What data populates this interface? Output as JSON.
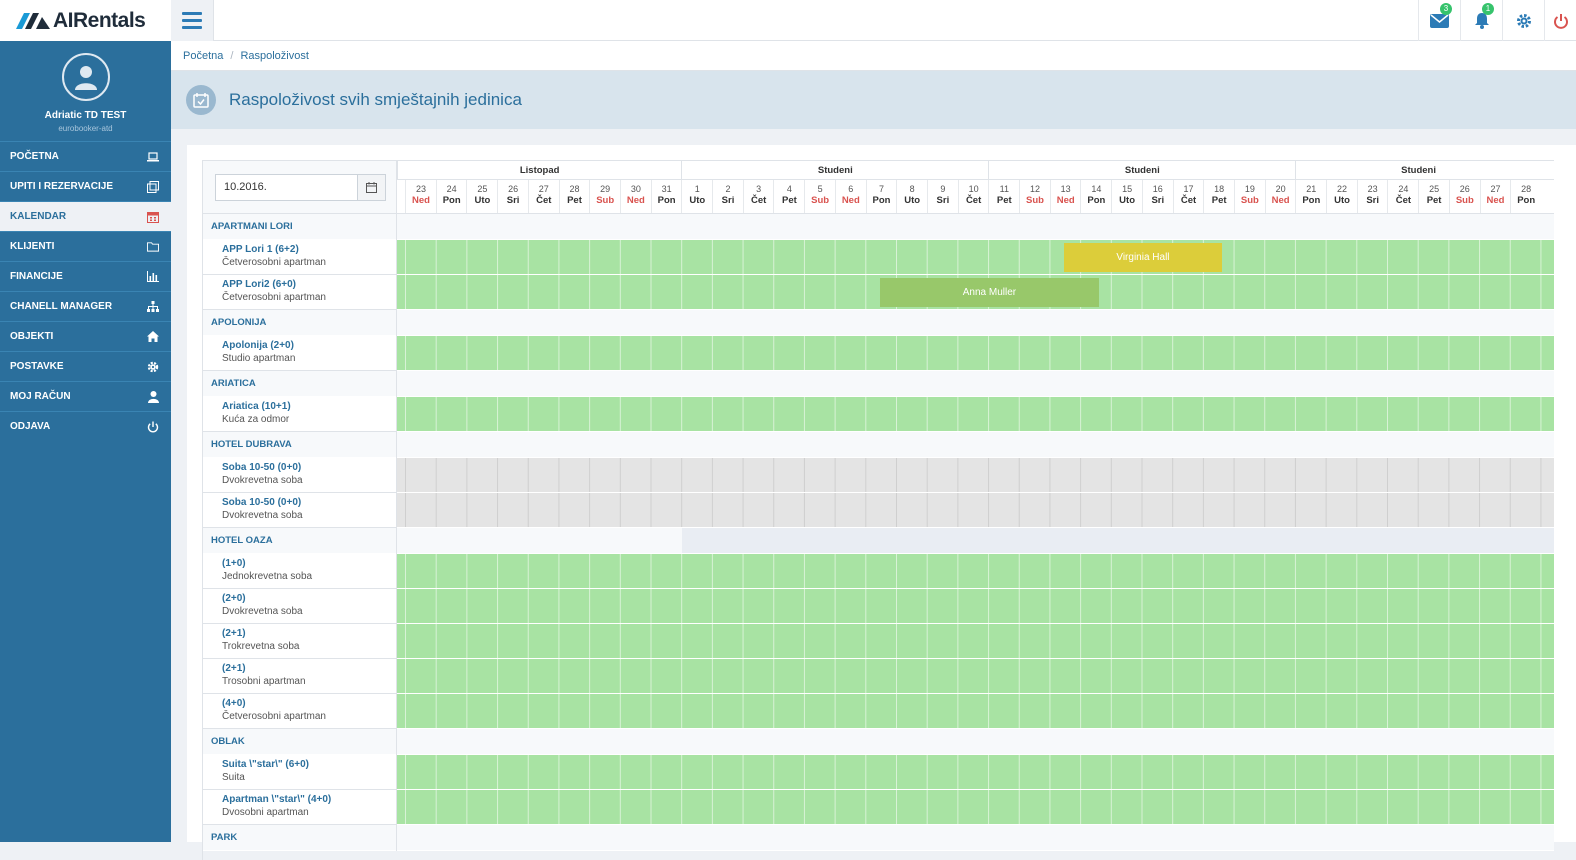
{
  "app": {
    "brand": "AIRentals"
  },
  "topbar": {
    "mail_count": "3",
    "notif_count": "1"
  },
  "profile": {
    "name": "Adriatic TD TEST",
    "sub": "eurobooker-atd"
  },
  "nav": [
    {
      "label": "POČETNA",
      "icon": "laptop-icon"
    },
    {
      "label": "UPITI I REZERVACIJE",
      "icon": "copy-icon"
    },
    {
      "label": "KALENDAR",
      "icon": "calendar-icon",
      "active": true
    },
    {
      "label": "KLIJENTI",
      "icon": "folder-icon"
    },
    {
      "label": "FINANCIJE",
      "icon": "chart-icon"
    },
    {
      "label": "CHANELL MANAGER",
      "icon": "sitemap-icon"
    },
    {
      "label": "OBJEKTI",
      "icon": "home-icon"
    },
    {
      "label": "POSTAVKE",
      "icon": "gear-icon"
    },
    {
      "label": "MOJ RAČUN",
      "icon": "user-icon"
    },
    {
      "label": "ODJAVA",
      "icon": "power-icon"
    }
  ],
  "breadcrumb": {
    "home": "Početna",
    "current": "Raspoloživost"
  },
  "page": {
    "title": "Raspoloživost svih smještajnih jedinica"
  },
  "calendar": {
    "date_value": "10.2016.",
    "months": [
      "Listopad",
      "Studeni",
      "Studeni",
      "Studeni"
    ],
    "days": [
      {
        "d": "23",
        "w": "Ned",
        "we": true
      },
      {
        "d": "24",
        "w": "Pon"
      },
      {
        "d": "25",
        "w": "Uto"
      },
      {
        "d": "26",
        "w": "Sri"
      },
      {
        "d": "27",
        "w": "Čet"
      },
      {
        "d": "28",
        "w": "Pet"
      },
      {
        "d": "29",
        "w": "Sub",
        "we": true
      },
      {
        "d": "30",
        "w": "Ned",
        "we": true
      },
      {
        "d": "31",
        "w": "Pon"
      },
      {
        "d": "1",
        "w": "Uto"
      },
      {
        "d": "2",
        "w": "Sri"
      },
      {
        "d": "3",
        "w": "Čet"
      },
      {
        "d": "4",
        "w": "Pet"
      },
      {
        "d": "5",
        "w": "Sub",
        "we": true
      },
      {
        "d": "6",
        "w": "Ned",
        "we": true
      },
      {
        "d": "7",
        "w": "Pon"
      },
      {
        "d": "8",
        "w": "Uto"
      },
      {
        "d": "9",
        "w": "Sri"
      },
      {
        "d": "10",
        "w": "Čet"
      },
      {
        "d": "11",
        "w": "Pet"
      },
      {
        "d": "12",
        "w": "Sub",
        "we": true
      },
      {
        "d": "13",
        "w": "Ned",
        "we": true
      },
      {
        "d": "14",
        "w": "Pon"
      },
      {
        "d": "15",
        "w": "Uto"
      },
      {
        "d": "16",
        "w": "Sri"
      },
      {
        "d": "17",
        "w": "Čet"
      },
      {
        "d": "18",
        "w": "Pet"
      },
      {
        "d": "19",
        "w": "Sub",
        "we": true
      },
      {
        "d": "20",
        "w": "Ned",
        "we": true
      },
      {
        "d": "21",
        "w": "Pon"
      },
      {
        "d": "22",
        "w": "Uto"
      },
      {
        "d": "23",
        "w": "Sri"
      },
      {
        "d": "24",
        "w": "Čet"
      },
      {
        "d": "25",
        "w": "Pet"
      },
      {
        "d": "26",
        "w": "Sub",
        "we": true
      },
      {
        "d": "27",
        "w": "Ned",
        "we": true
      },
      {
        "d": "28",
        "w": "Pon"
      }
    ],
    "groups": [
      {
        "name": "APARTMANI LORI",
        "units": [
          {
            "name": "APP Lori 1 (6+2)",
            "type": "Četverosobni apartman",
            "state": "green"
          },
          {
            "name": "APP Lori2 (6+0)",
            "type": "Četverosobni apartman",
            "state": "green"
          }
        ]
      },
      {
        "name": "APOLONIJA",
        "units": [
          {
            "name": "Apolonija (2+0)",
            "type": "Studio apartman",
            "state": "green"
          }
        ]
      },
      {
        "name": "ARIATICA",
        "units": [
          {
            "name": "Ariatica (10+1)",
            "type": "Kuća za odmor",
            "state": "green"
          }
        ]
      },
      {
        "name": "HOTEL DUBRAVA",
        "units": [
          {
            "name": "Soba 10-50 (0+0)",
            "type": "Dvokrevetna soba",
            "state": "grey"
          },
          {
            "name": "Soba 10-50 (0+0)",
            "type": "Dvokrevetna soba",
            "state": "grey"
          }
        ]
      },
      {
        "name": "HOTEL OAZA",
        "units": [
          {
            "name": "(1+0)",
            "type": "Jednokrevetna soba",
            "state": "green"
          },
          {
            "name": "(2+0)",
            "type": "Dvokrevetna soba",
            "state": "green"
          },
          {
            "name": "(2+1)",
            "type": "Trokrevetna soba",
            "state": "green"
          },
          {
            "name": "(2+1)",
            "type": "Trosobni apartman",
            "state": "green"
          },
          {
            "name": "(4+0)",
            "type": "Četverosobni apartman",
            "state": "green"
          }
        ]
      },
      {
        "name": "OBLAK",
        "units": [
          {
            "name": "Suita \\\"star\\\" (6+0)",
            "type": "Suita",
            "state": "green"
          },
          {
            "name": "Apartman \\\"star\\\" (4+0)",
            "type": "Dvosobni apartman",
            "state": "green"
          }
        ]
      },
      {
        "name": "PARK",
        "units": []
      }
    ],
    "reservations": [
      {
        "guest": "Virginia Hall",
        "unit": "APP Lori 1 (6+2)",
        "from": "13",
        "to": "18",
        "color": "#dccd3a"
      },
      {
        "guest": "Anna Muller",
        "unit": "APP Lori2 (6+0)",
        "from": "7",
        "to": "14",
        "color": "#98c86a"
      }
    ]
  }
}
